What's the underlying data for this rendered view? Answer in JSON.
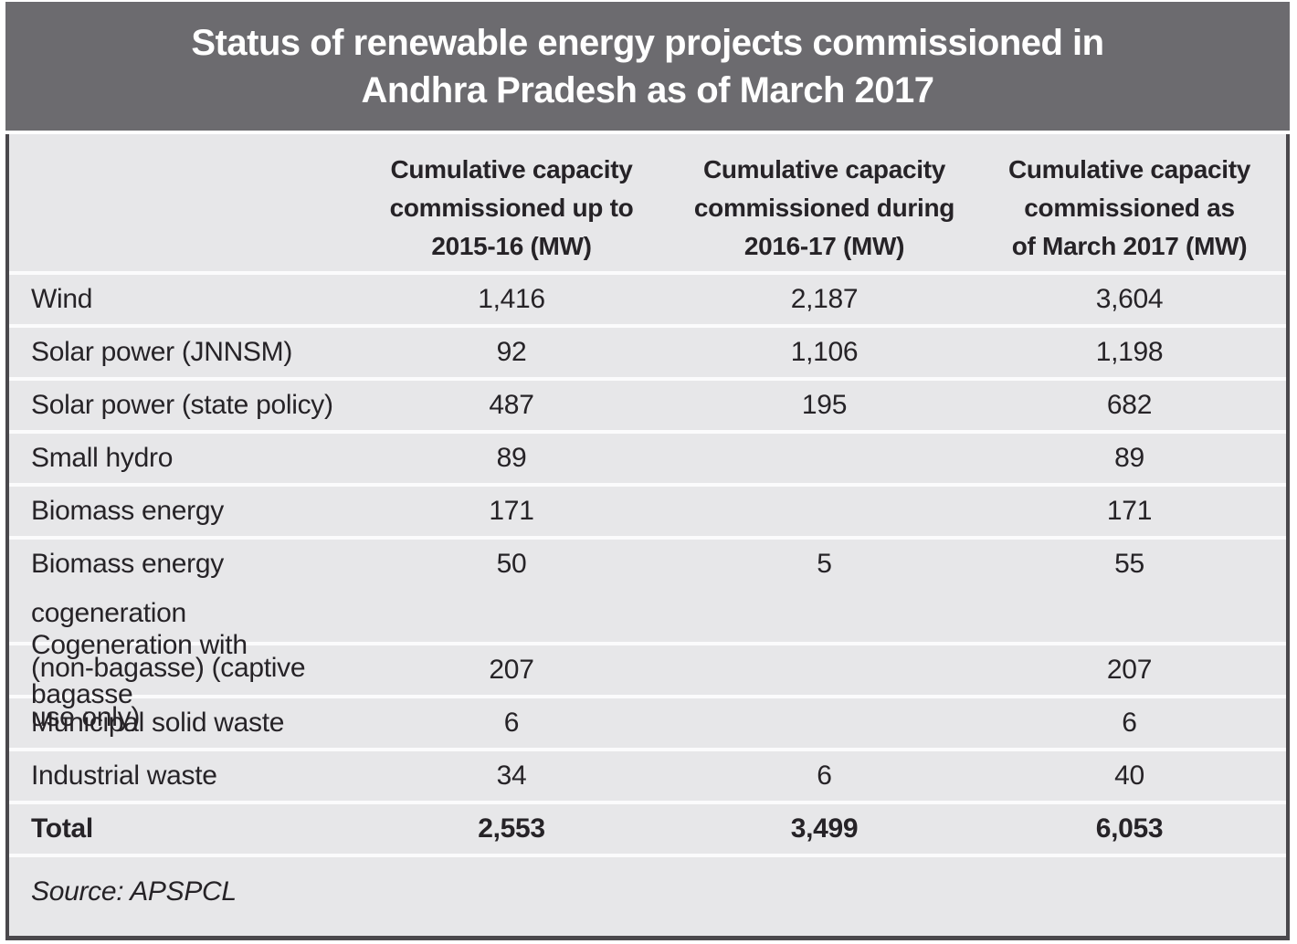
{
  "title": {
    "line1": "Status of renewable energy projects commissioned in",
    "line2": "Andhra Pradesh as of March 2017"
  },
  "table": {
    "columns": [
      {
        "lines": [
          "Cumulative capacity",
          "commissioned up to",
          "2015-16 (MW)"
        ]
      },
      {
        "lines": [
          "Cumulative capacity",
          "commissioned during",
          "2016-17 (MW)"
        ]
      },
      {
        "lines": [
          "Cumulative capacity",
          "commissioned as",
          "of March 2017 (MW)"
        ]
      }
    ],
    "rows": [
      {
        "label": "Wind",
        "c1": "1,416",
        "c2": "2,187",
        "c3": "3,604"
      },
      {
        "label": "Solar power (JNNSM)",
        "c1": "92",
        "c2": "1,106",
        "c3": "1,198"
      },
      {
        "label": "Solar power (state policy)",
        "c1": "487",
        "c2": "195",
        "c3": "682"
      },
      {
        "label": "Small hydro",
        "c1": "89",
        "c2": "",
        "c3": "89"
      },
      {
        "label": "Biomass energy",
        "c1": "171",
        "c2": "",
        "c3": "171"
      },
      {
        "label": "Biomass energy cogeneration",
        "label2": "(non-bagasse) (captive use only)",
        "c1": "50",
        "c2": "5",
        "c3": "55"
      },
      {
        "label": "Cogeneration with bagasse",
        "c1": "207",
        "c2": "",
        "c3": "207"
      },
      {
        "label": "Municipal solid waste",
        "c1": "6",
        "c2": "",
        "c3": "6"
      },
      {
        "label": "Industrial waste",
        "c1": "34",
        "c2": "6",
        "c3": "40"
      },
      {
        "label": "Total",
        "c1": "2,553",
        "c2": "3,499",
        "c3": "6,053"
      }
    ],
    "source": "Source: APSPCL"
  },
  "colors": {
    "banner_background": "#6c6b6f",
    "banner_text": "#ffffff",
    "table_background": "#e7e7e9",
    "row_separator": "#fbfbfc",
    "outer_border": "#4a484c",
    "text": "#262327"
  },
  "chart_data": {
    "type": "table",
    "title": "Status of renewable energy projects commissioned in Andhra Pradesh as of March 2017",
    "columns": [
      "",
      "Cumulative capacity commissioned up to 2015-16 (MW)",
      "Cumulative capacity commissioned during 2016-17 (MW)",
      "Cumulative capacity commissioned as of March 2017 (MW)"
    ],
    "rows": [
      [
        "Wind",
        1416,
        2187,
        3604
      ],
      [
        "Solar power (JNNSM)",
        92,
        1106,
        1198
      ],
      [
        "Solar power (state policy)",
        487,
        195,
        682
      ],
      [
        "Small hydro",
        89,
        null,
        89
      ],
      [
        "Biomass energy",
        171,
        null,
        171
      ],
      [
        "Biomass energy cogeneration (non-bagasse) (captive use only)",
        50,
        5,
        55
      ],
      [
        "Cogeneration with bagasse",
        207,
        null,
        207
      ],
      [
        "Municipal solid waste",
        6,
        null,
        6
      ],
      [
        "Industrial waste",
        34,
        6,
        40
      ],
      [
        "Total",
        2553,
        3499,
        6053
      ]
    ],
    "source": "Source: APSPCL"
  }
}
